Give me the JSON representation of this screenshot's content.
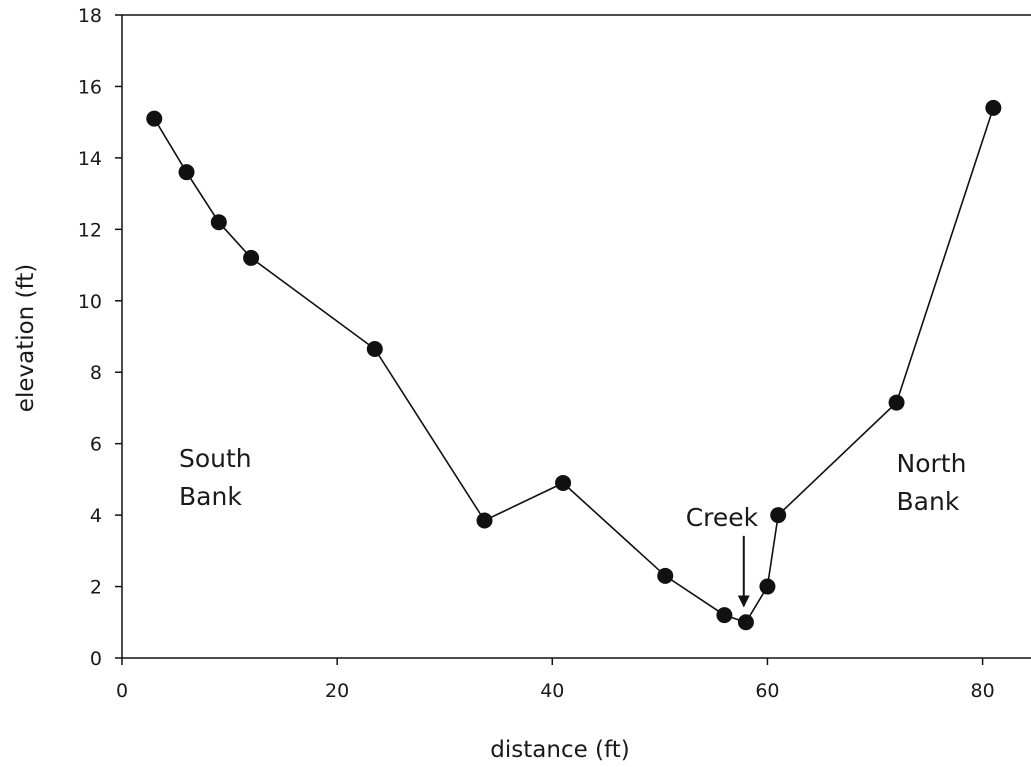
{
  "chart_data": {
    "type": "line",
    "title": "",
    "xlabel": "distance (ft)",
    "ylabel": "elevation (ft)",
    "xlim": [
      0,
      84.5
    ],
    "ylim": [
      0,
      18
    ],
    "xticks": [
      0,
      20,
      40,
      60,
      80
    ],
    "yticks": [
      0,
      2,
      4,
      6,
      8,
      10,
      12,
      14,
      16,
      18
    ],
    "grid": false,
    "markers": "filled-circle",
    "line_color": "#111111",
    "series": [
      {
        "x": [
          3,
          6,
          9,
          12,
          23.5,
          33.7,
          41,
          50.5,
          56,
          58,
          60,
          61,
          72,
          81
        ],
        "y": [
          15.1,
          13.6,
          12.2,
          11.2,
          8.65,
          3.85,
          4.9,
          2.3,
          1.2,
          1.0,
          2.0,
          4.0,
          7.15,
          15.4
        ]
      }
    ],
    "annotations": [
      {
        "lines": [
          "South",
          "Bank"
        ],
        "x": 5.3,
        "y": 5.35
      },
      {
        "lines": [
          "North",
          "Bank"
        ],
        "x": 72,
        "y": 5.2
      },
      {
        "lines": [
          "Creek"
        ],
        "x": 52.4,
        "y": 3.7,
        "arrow_to": [
          57.8,
          1.45
        ]
      }
    ]
  }
}
